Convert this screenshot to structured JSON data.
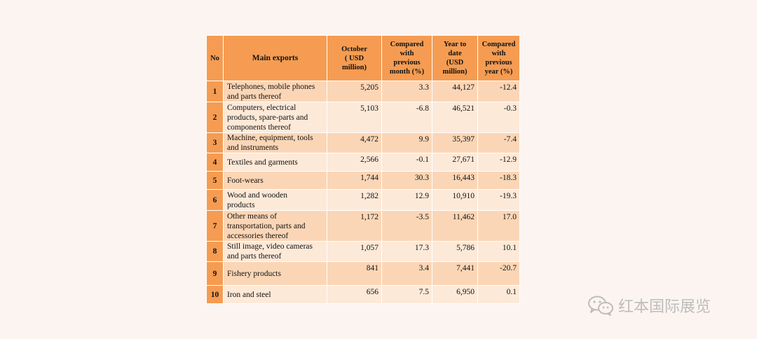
{
  "table": {
    "headers": {
      "no": "No",
      "main": "Main exports",
      "october": [
        "October",
        "( USD",
        "million)"
      ],
      "vs_month": [
        "Compared",
        "with",
        "previous",
        "month (%)"
      ],
      "ytd": [
        "Year to",
        "date",
        "(USD",
        "million)"
      ],
      "vs_year": [
        "Compared",
        "with",
        "previous",
        "year (%)"
      ]
    },
    "rows": [
      {
        "no": "1",
        "name": [
          "Telephones, mobile phones",
          "and  parts thereof"
        ],
        "october": "5,205",
        "vs_month": "3.3",
        "ytd": "44,127",
        "vs_year": "-12.4"
      },
      {
        "no": "2",
        "name": [
          "Computers, electrical",
          "products, spare-parts and",
          "components thereof"
        ],
        "october": "5,103",
        "vs_month": "-6.8",
        "ytd": "46,521",
        "vs_year": "-0.3"
      },
      {
        "no": "3",
        "name": [
          "Machine, equipment, tools",
          "and instruments"
        ],
        "october": "4,472",
        "vs_month": "9.9",
        "ytd": "35,397",
        "vs_year": "-7.4"
      },
      {
        "no": "4",
        "name": [
          "Textiles and garments"
        ],
        "october": "2,566",
        "vs_month": "-0.1",
        "ytd": "27,671",
        "vs_year": "-12.9"
      },
      {
        "no": "5",
        "name": [
          "Foot-wears"
        ],
        "october": "1,744",
        "vs_month": "30.3",
        "ytd": "16,443",
        "vs_year": "-18.3"
      },
      {
        "no": "6",
        "name": [
          "Wood and wooden",
          "products"
        ],
        "october": "1,282",
        "vs_month": "12.9",
        "ytd": "10,910",
        "vs_year": "-19.3"
      },
      {
        "no": "7",
        "name": [
          "Other means of",
          "transportation, parts and",
          "accessories thereof"
        ],
        "october": "1,172",
        "vs_month": "-3.5",
        "ytd": "11,462",
        "vs_year": "17.0"
      },
      {
        "no": "8",
        "name": [
          "Still image, video cameras",
          "and parts thereof"
        ],
        "october": "1,057",
        "vs_month": "17.3",
        "ytd": "5,786",
        "vs_year": "10.1"
      },
      {
        "no": "9",
        "name": [
          "Fishery products"
        ],
        "october": "841",
        "vs_month": "3.4",
        "ytd": "7,441",
        "vs_year": "-20.7"
      },
      {
        "no": "10",
        "name": [
          "Iron and steel"
        ],
        "october": "656",
        "vs_month": "7.5",
        "ytd": "6,950",
        "vs_year": "0.1"
      }
    ]
  },
  "watermark": {
    "icon": "wechat-icon",
    "text": "红本国际展览"
  }
}
